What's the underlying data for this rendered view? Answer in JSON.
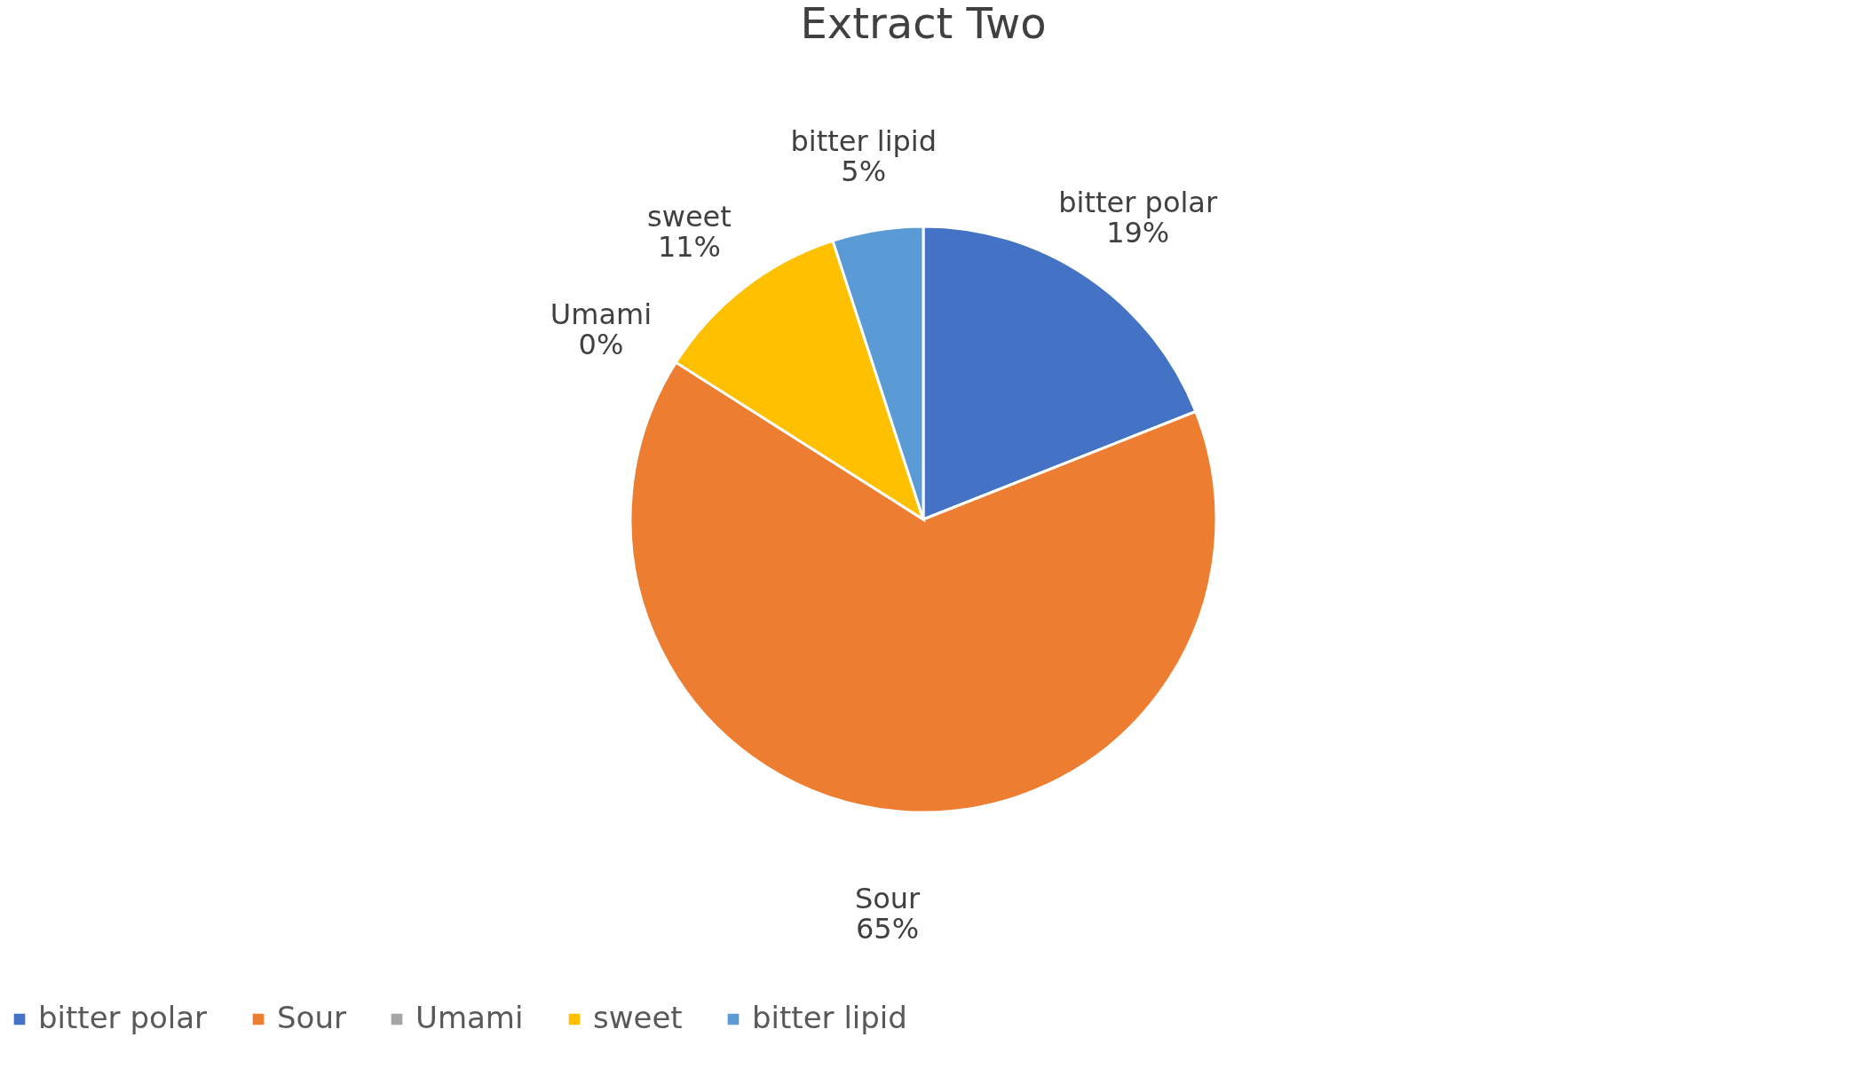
{
  "chart_data": {
    "type": "pie",
    "title": "Extract Two",
    "categories": [
      "bitter polar",
      "Sour",
      "Umami",
      "sweet",
      "bitter lipid"
    ],
    "values": [
      19,
      65,
      0,
      11,
      5
    ],
    "value_labels": [
      "19%",
      "65%",
      "0%",
      "11%",
      "5%"
    ],
    "colors": [
      "#4472c4",
      "#ed7d31",
      "#a5a5a5",
      "#ffc000",
      "#5b9bd5"
    ],
    "legend": "bottom"
  }
}
